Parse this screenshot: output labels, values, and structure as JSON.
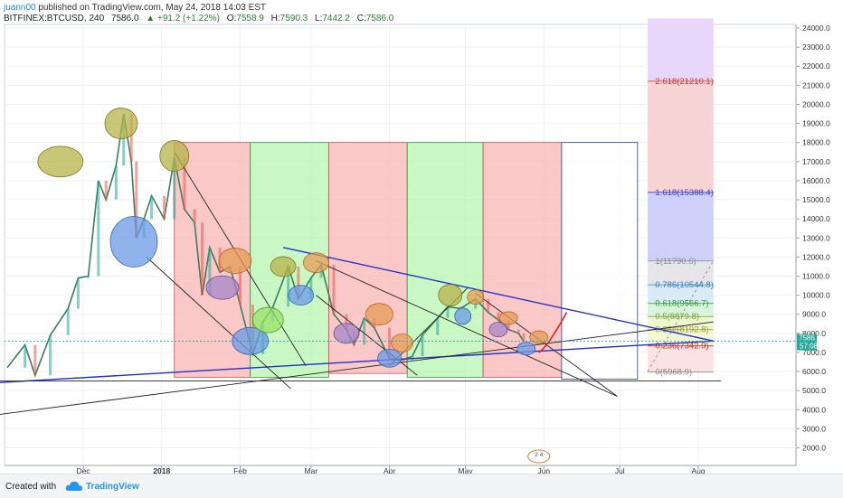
{
  "header": {
    "author": "juann00",
    "published_text": "published on TradingView.com, May 24, 2018 14:03 EST",
    "symbol": "BITFINEX:BTCUSD, 240",
    "last": "7586.0",
    "change": "▲ +91.2 (+1.22%)",
    "open_label": "O:",
    "open": "7558.9",
    "high_label": "H:",
    "high": "7590.3",
    "low_label": "L:",
    "low": "7442.2",
    "close_label": "C:",
    "close": "7586.0"
  },
  "footer": {
    "created_with": "Created with",
    "brand": "TradingView"
  },
  "colors": {
    "up": "#26a69a",
    "down": "#ef5350",
    "red_zone": "#f9b5b5",
    "green_zone": "#b7f5b0",
    "trend_blue": "#2962ff",
    "fib_purple": "#d7c2f5"
  },
  "chart_data": {
    "type": "line",
    "title": "",
    "ylim": [
      1000,
      24500
    ],
    "y_ticks": [
      "2000.0",
      "3000.0",
      "4000.0",
      "5000.0",
      "6000.0",
      "7000.0",
      "8000.0",
      "9000.0",
      "10000.0",
      "11000.0",
      "12000.0",
      "13000.0",
      "14000.0",
      "15000.0",
      "16000.0",
      "17000.0",
      "18000.0",
      "19000.0",
      "20000.0",
      "21000.0",
      "22000.0",
      "23000.0",
      "24000.0"
    ],
    "x_ticks": [
      "Dec",
      "2018",
      "Feb",
      "Mar",
      "Apr",
      "May",
      "Jun",
      "Jul",
      "Aug"
    ],
    "series": [
      {
        "values": [
          [
            "2017-11-01",
            6200
          ],
          [
            "2017-11-08",
            7400
          ],
          [
            "2017-11-12",
            5800
          ],
          [
            "2017-11-18",
            7900
          ],
          [
            "2017-11-25",
            9300
          ],
          [
            "2017-11-29",
            10900
          ],
          [
            "2017-12-03",
            11000
          ],
          [
            "2017-12-07",
            16000
          ],
          [
            "2017-12-10",
            15000
          ],
          [
            "2017-12-14",
            16800
          ],
          [
            "2017-12-17",
            19500
          ],
          [
            "2017-12-20",
            17000
          ],
          [
            "2017-12-22",
            13000
          ],
          [
            "2017-12-25",
            14000
          ],
          [
            "2017-12-28",
            15200
          ],
          [
            "2018-01-02",
            14000
          ],
          [
            "2018-01-06",
            17200
          ],
          [
            "2018-01-10",
            14500
          ],
          [
            "2018-01-14",
            13800
          ],
          [
            "2018-01-17",
            10000
          ],
          [
            "2018-01-20",
            12500
          ],
          [
            "2018-01-24",
            11200
          ],
          [
            "2018-01-28",
            11500
          ],
          [
            "2018-02-01",
            9500
          ],
          [
            "2018-02-06",
            6900
          ],
          [
            "2018-02-10",
            8600
          ],
          [
            "2018-02-14",
            9400
          ],
          [
            "2018-02-20",
            11500
          ],
          [
            "2018-02-24",
            9800
          ],
          [
            "2018-03-01",
            10900
          ],
          [
            "2018-03-05",
            11600
          ],
          [
            "2018-03-10",
            9000
          ],
          [
            "2018-03-15",
            8200
          ],
          [
            "2018-03-18",
            7400
          ],
          [
            "2018-03-22",
            8800
          ],
          [
            "2018-03-26",
            8300
          ],
          [
            "2018-04-01",
            6700
          ],
          [
            "2018-04-06",
            6600
          ],
          [
            "2018-04-10",
            6800
          ],
          [
            "2018-04-14",
            7900
          ],
          [
            "2018-04-20",
            8800
          ],
          [
            "2018-04-24",
            9400
          ],
          [
            "2018-04-29",
            9300
          ],
          [
            "2018-05-05",
            9800
          ],
          [
            "2018-05-10",
            9100
          ],
          [
            "2018-05-14",
            8700
          ],
          [
            "2018-05-18",
            8200
          ],
          [
            "2018-05-22",
            8000
          ],
          [
            "2018-05-24",
            7586
          ]
        ]
      }
    ],
    "fib_levels": [
      {
        "ratio": "2.618",
        "value": 21210.1,
        "label": "2.618(21210.1)"
      },
      {
        "ratio": "1.618",
        "value": 15388.4,
        "label": "1.618(15388.4)"
      },
      {
        "ratio": "1",
        "value": 11790.6,
        "label": "1(11790.6)"
      },
      {
        "ratio": "0.786",
        "value": 10544.8,
        "label": "0.786(10544.8)"
      },
      {
        "ratio": "0.618",
        "value": 9566.7,
        "label": "0.618(9566.7)"
      },
      {
        "ratio": "0.5",
        "value": 8879.8,
        "label": "0.5(8879.8)"
      },
      {
        "ratio": "0.382",
        "value": 8192.8,
        "label": "0.382(8192.8)"
      },
      {
        "ratio": "0.236",
        "value": 7342.9,
        "label": "0.236(7342.9)"
      },
      {
        "ratio": "0",
        "value": 5968.9,
        "label": "0(5968.9)"
      }
    ],
    "price_marker": {
      "value": 7586.0,
      "label": "7586.0"
    },
    "time_marker": {
      "label": "57:08"
    },
    "zones": [
      {
        "color": "red",
        "start": "2018-01-06",
        "end": "2018-02-05",
        "top": 18000,
        "bottom": 5700
      },
      {
        "color": "green",
        "start": "2018-02-05",
        "end": "2018-03-08",
        "top": 18000,
        "bottom": 5700
      },
      {
        "color": "red",
        "start": "2018-03-08",
        "end": "2018-04-08",
        "top": 18000,
        "bottom": 5900
      },
      {
        "color": "green",
        "start": "2018-04-08",
        "end": "2018-05-08",
        "top": 18000,
        "bottom": 5700
      },
      {
        "color": "red",
        "start": "2018-05-08",
        "end": "2018-06-08",
        "top": 18000,
        "bottom": 5700
      },
      {
        "color": "white",
        "start": "2018-06-08",
        "end": "2018-07-08",
        "top": 18000,
        "bottom": 5600
      }
    ],
    "fib_box": {
      "start": "2018-07-12",
      "end": "2018-08-07"
    },
    "lines": [
      {
        "from": [
          "2017-10-26",
          5400
        ],
        "to": [
          "2018-08-07",
          7600
        ],
        "color": "blue"
      },
      {
        "from": [
          "2017-10-26",
          3700
        ],
        "to": [
          "2018-08-07",
          8600
        ],
        "color": "black"
      },
      {
        "from": [
          "2017-10-26",
          5500
        ],
        "to": [
          "2018-08-10",
          5500
        ],
        "color": "black"
      },
      {
        "from": [
          "2018-02-18",
          12500
        ],
        "to": [
          "2018-08-07",
          7600
        ],
        "color": "blue"
      },
      {
        "from": [
          "2018-03-03",
          11800
        ],
        "to": [
          "2018-06-30",
          4700
        ],
        "color": "black"
      },
      {
        "from": [
          "2018-01-06",
          17500
        ],
        "to": [
          "2018-02-27",
          6300
        ],
        "color": "black"
      },
      {
        "from": [
          "2017-12-26",
          12000
        ],
        "to": [
          "2018-02-21",
          5100
        ],
        "color": "black"
      },
      {
        "from": [
          "2018-04-01",
          6300
        ],
        "to": [
          "2018-05-02",
          10400
        ],
        "color": "black"
      },
      {
        "from": [
          "2018-05-05",
          10100
        ],
        "to": [
          "2018-06-30",
          4700
        ],
        "color": "black"
      },
      {
        "from": [
          "2018-03-03",
          10000
        ],
        "to": [
          "2018-04-12",
          5800
        ],
        "color": "black"
      }
    ],
    "projection": {
      "from": [
        "2018-07-12",
        6000
      ],
      "to": [
        "2018-08-07",
        11800
      ]
    },
    "ellipses": [
      {
        "date": "2017-11-22",
        "value": 17000,
        "color": "olive"
      },
      {
        "date": "2017-12-16",
        "value": 19000,
        "color": "olive"
      },
      {
        "date": "2018-01-06",
        "value": 17300,
        "color": "olive"
      },
      {
        "date": "2017-12-21",
        "value": 12800,
        "color": "blue"
      },
      {
        "date": "2018-01-25",
        "value": 10400,
        "color": "purple"
      },
      {
        "date": "2018-01-30",
        "value": 11800,
        "color": "orange"
      },
      {
        "date": "2018-02-05",
        "value": 7600,
        "color": "blue"
      },
      {
        "date": "2018-02-12",
        "value": 8700,
        "color": "green"
      },
      {
        "date": "2018-02-18",
        "value": 11500,
        "color": "olive"
      },
      {
        "date": "2018-02-25",
        "value": 10000,
        "color": "blue"
      },
      {
        "date": "2018-03-03",
        "value": 11700,
        "color": "orange"
      },
      {
        "date": "2018-03-15",
        "value": 8000,
        "color": "purple"
      },
      {
        "date": "2018-03-28",
        "value": 9000,
        "color": "orange"
      },
      {
        "date": "2018-04-01",
        "value": 6700,
        "color": "blue"
      },
      {
        "date": "2018-04-06",
        "value": 7500,
        "color": "orange"
      },
      {
        "date": "2018-04-25",
        "value": 10000,
        "color": "olive"
      },
      {
        "date": "2018-04-30",
        "value": 8900,
        "color": "blue"
      },
      {
        "date": "2018-05-05",
        "value": 9900,
        "color": "orange"
      },
      {
        "date": "2018-05-14",
        "value": 8200,
        "color": "purple"
      },
      {
        "date": "2018-05-18",
        "value": 8800,
        "color": "orange"
      },
      {
        "date": "2018-05-25",
        "value": 7200,
        "color": "blue"
      },
      {
        "date": "2018-05-30",
        "value": 7800,
        "color": "orange"
      }
    ],
    "red_arrow": {
      "from": [
        "2018-05-30",
        7000
      ],
      "to": [
        "2018-06-10",
        9100
      ]
    },
    "event_badge": "2 4"
  }
}
